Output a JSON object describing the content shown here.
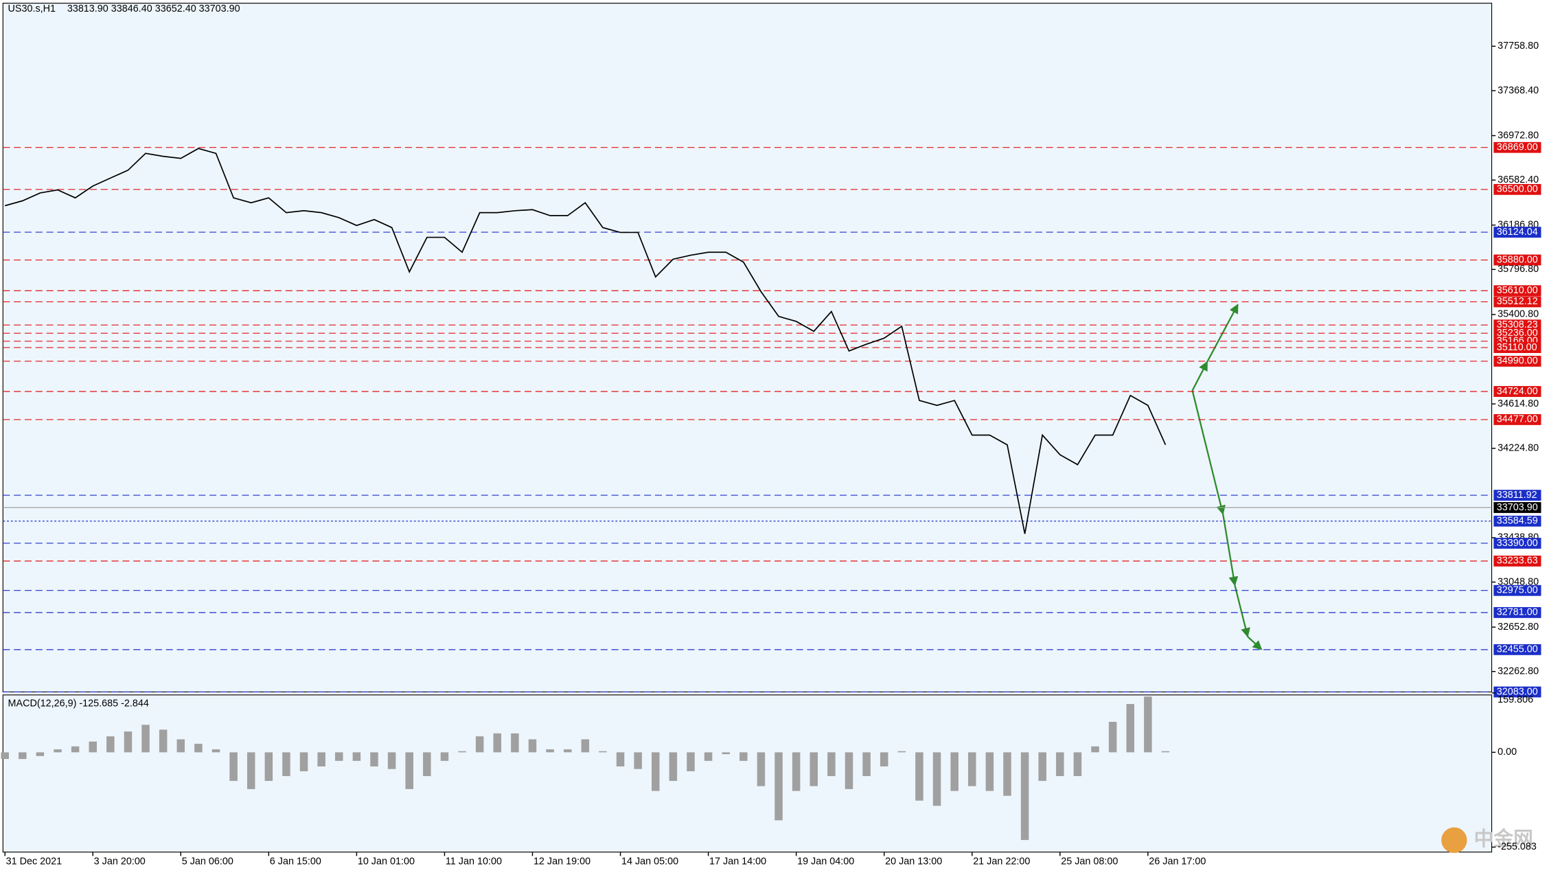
{
  "header": {
    "symbol": "US30.s,H1",
    "ohlc": "33813.90 33846.40 33652.40 33703.90"
  },
  "chart_data": [
    {
      "type": "line",
      "color": "#000000",
      "categories": [
        "31 Dec 2021",
        null,
        null,
        null,
        null,
        "3 Jan 20:00",
        null,
        null,
        null,
        null,
        "5 Jan 06:00",
        null,
        null,
        null,
        null,
        "6 Jan 15:00",
        null,
        null,
        null,
        null,
        "10 Jan 01:00",
        null,
        null,
        null,
        null,
        "11 Jan 10:00",
        null,
        null,
        null,
        null,
        "12 Jan 19:00",
        null,
        null,
        null,
        null,
        "14 Jan 05:00",
        null,
        null,
        null,
        null,
        "17 Jan 14:00",
        null,
        null,
        null,
        null,
        "19 Jan 04:00",
        null,
        null,
        null,
        null,
        "20 Jan 13:00",
        null,
        null,
        null,
        null,
        "21 Jan 22:00",
        null,
        null,
        null,
        null,
        "25 Jan 08:00",
        null,
        null,
        null,
        null,
        "26 Jan 17:00",
        null
      ],
      "values": [
        36357,
        36400,
        36469,
        36496,
        36426,
        36530,
        36600,
        36669,
        36817,
        36791,
        36773,
        36860,
        36817,
        36426,
        36383,
        36426,
        36296,
        36313,
        36296,
        36252,
        36183,
        36235,
        36165,
        35775,
        36079,
        36079,
        35948,
        36296,
        36296,
        36313,
        36322,
        36270,
        36270,
        36383,
        36165,
        36122,
        36122,
        35731,
        35887,
        35922,
        35948,
        35948,
        35861,
        35601,
        35384,
        35340,
        35253,
        35427,
        35080,
        35140,
        35193,
        35297,
        34645,
        34602,
        34645,
        34341,
        34341,
        34255,
        33473,
        34341,
        34168,
        34081,
        34341,
        34341,
        34689,
        34602,
        34255
      ],
      "ylim": [
        32083,
        38137
      ],
      "yticks": [
        {
          "value": 37758.8,
          "label": "37758.80"
        },
        {
          "value": 37368.4,
          "label": "37368.40"
        },
        {
          "value": 36972.8,
          "label": "36972.80"
        },
        {
          "value": 36582.4,
          "label": "36582.40"
        },
        {
          "value": 36186.8,
          "label": "36186.80"
        },
        {
          "value": 35796.8,
          "label": "35796.80"
        },
        {
          "value": 35400.8,
          "label": "35400.80"
        },
        {
          "value": 34614.8,
          "label": "34614.80"
        },
        {
          "value": 34224.8,
          "label": "34224.80"
        },
        {
          "value": 33438.8,
          "label": "33438.80"
        },
        {
          "value": 33048.8,
          "label": "33048.80"
        },
        {
          "value": 32652.8,
          "label": "32652.80"
        },
        {
          "value": 32262.8,
          "label": "32262.80"
        }
      ],
      "levels": [
        {
          "value": 36869,
          "label": "36869.00",
          "color": "#e01010"
        },
        {
          "value": 36500,
          "label": "36500.00",
          "color": "#e01010"
        },
        {
          "value": 36124.04,
          "label": "36124.04",
          "color": "#1a2ec8"
        },
        {
          "value": 35880,
          "label": "35880.00",
          "color": "#e01010"
        },
        {
          "value": 35610,
          "label": "35610.00",
          "color": "#e01010"
        },
        {
          "value": 35512.12,
          "label": "35512.12",
          "color": "#e01010"
        },
        {
          "value": 35308.23,
          "label": "35308.23",
          "color": "#e01010"
        },
        {
          "value": 35236,
          "label": "35236.00",
          "color": "#e01010"
        },
        {
          "value": 35166,
          "label": "35166.00",
          "color": "#e01010"
        },
        {
          "value": 35110,
          "label": "35110.00",
          "color": "#e01010"
        },
        {
          "value": 34990,
          "label": "34990.00",
          "color": "#e01010"
        },
        {
          "value": 34724,
          "label": "34724.00",
          "color": "#e01010"
        },
        {
          "value": 34477,
          "label": "34477.00",
          "color": "#e01010"
        },
        {
          "value": 33811.92,
          "label": "33811.92",
          "color": "#1a2ec8"
        },
        {
          "value": 33703.9,
          "label": "33703.90",
          "color": "#000000"
        },
        {
          "value": 33584.59,
          "label": "33584.59",
          "color": "#1a2ec8"
        },
        {
          "value": 33390,
          "label": "33390.00",
          "color": "#1a2ec8"
        },
        {
          "value": 33233.63,
          "label": "33233.63",
          "color": "#e01010"
        },
        {
          "value": 32975,
          "label": "32975.00",
          "color": "#1a2ec8"
        },
        {
          "value": 32781,
          "label": "32781.00",
          "color": "#1a2ec8"
        },
        {
          "value": 32455,
          "label": "32455.00",
          "color": "#1a2ec8"
        },
        {
          "value": 32083,
          "label": "32083.00",
          "color": "#1a2ec8"
        }
      ]
    },
    {
      "type": "bar",
      "title": "MACD(12,26,9) -125.685 -2.844",
      "color": "#a0a0a0",
      "values": [
        -18,
        -18,
        -10,
        8,
        16,
        29,
        43,
        56,
        74,
        61,
        35,
        23,
        8,
        -77,
        -99,
        -77,
        -64,
        -51,
        -38,
        -23,
        -23,
        -38,
        -45,
        -99,
        -64,
        -23,
        3,
        43,
        51,
        51,
        35,
        8,
        8,
        35,
        3,
        -38,
        -45,
        -104,
        -77,
        -51,
        -23,
        -5,
        -23,
        -91,
        -183,
        -104,
        -91,
        -64,
        -99,
        -64,
        -38,
        3,
        -130,
        -144,
        -104,
        -91,
        -104,
        -117,
        -236,
        -77,
        -64,
        -64,
        16,
        82,
        130,
        150,
        3
      ],
      "ylim": [
        -255.083,
        159.806
      ],
      "yticks": [
        {
          "value": 159.806,
          "label": "159.806"
        },
        {
          "value": 0,
          "label": "0.00"
        },
        {
          "value": -255.083,
          "label": "-255.083"
        }
      ]
    }
  ],
  "watermark": "中金网"
}
